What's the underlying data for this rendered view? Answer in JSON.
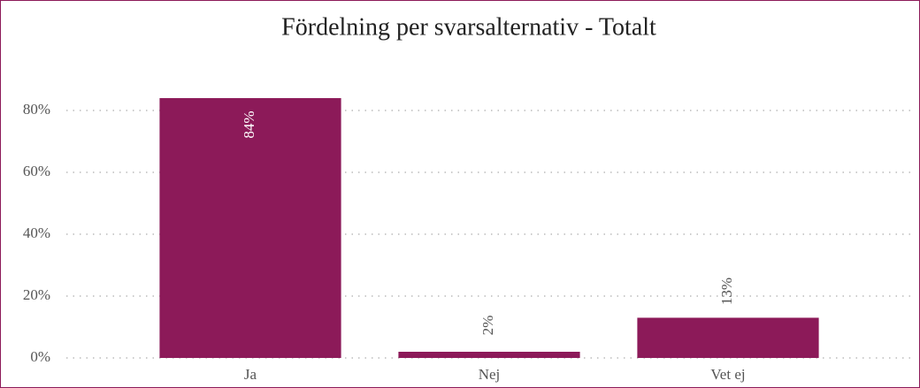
{
  "chart_data": {
    "type": "bar",
    "title": "Fördelning per svarsalternativ - Totalt",
    "categories": [
      "Ja",
      "Nej",
      "Vet ej"
    ],
    "values": [
      84,
      2,
      13
    ],
    "value_labels": [
      "84%",
      "2%",
      "13%"
    ],
    "color": "#8c1a59",
    "ylim": [
      0,
      100
    ],
    "yticks": [
      {
        "value": 0,
        "label": "0%"
      },
      {
        "value": 20,
        "label": "20%"
      },
      {
        "value": 40,
        "label": "40%"
      },
      {
        "value": 60,
        "label": "60%"
      },
      {
        "value": 80,
        "label": "80%"
      }
    ],
    "grid": true
  }
}
